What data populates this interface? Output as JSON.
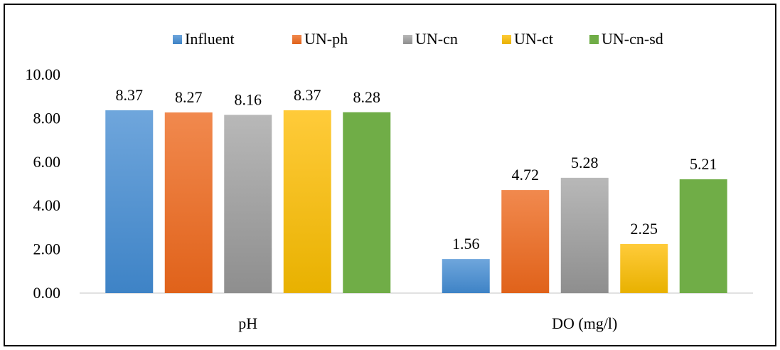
{
  "chart_data": {
    "type": "bar",
    "categories": [
      "pH",
      "DO (mg/l)"
    ],
    "series": [
      {
        "name": "Influent",
        "values": [
          8.37,
          1.56
        ],
        "color_top": "#6FA6DC",
        "color_bottom": "#3E83C6"
      },
      {
        "name": "UN-ph",
        "values": [
          8.27,
          4.72
        ],
        "color_top": "#F1894E",
        "color_bottom": "#E0621A"
      },
      {
        "name": "UN-cn",
        "values": [
          8.16,
          5.28
        ],
        "color_top": "#B8B8B8",
        "color_bottom": "#8E8E8E"
      },
      {
        "name": "UN-ct",
        "values": [
          8.37,
          2.25
        ],
        "color_top": "#FFCB3A",
        "color_bottom": "#E8B100"
      },
      {
        "name": "UN-cn-sd",
        "values": [
          8.28,
          5.21
        ],
        "color_top": "#70AD47",
        "color_bottom": "#70AD47"
      }
    ],
    "yticks": [
      "0.00",
      "2.00",
      "4.00",
      "6.00",
      "8.00",
      "10.00"
    ],
    "ylim": [
      0,
      10
    ],
    "value_decimals": 2,
    "title": "",
    "xlabel": "",
    "ylabel": "",
    "legend_position": "top",
    "grid": false,
    "axis_color": "#D9D9D9"
  }
}
